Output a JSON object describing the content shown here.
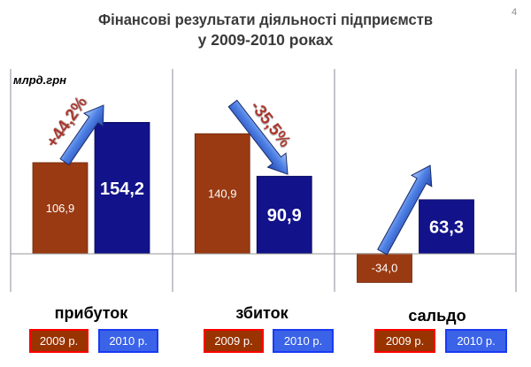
{
  "slide": {
    "page_number": "4",
    "title_line1": "Фінансові результати діяльності підприємств",
    "title_line2": "у 2009-2010 роках"
  },
  "colors": {
    "bar_2009": "#9A3A12",
    "bar_2010": "#12128A",
    "legend_2009_fill": "#993300",
    "legend_2009_border": "#FF0000",
    "legend_2010_fill": "#3B63E8",
    "legend_2010_border": "#1A3AF5",
    "change_label": "#A8372E",
    "arrow_outline": "#1B2C6B"
  },
  "chart_data": {
    "type": "bar",
    "ylabel": "млрд.грн",
    "categories": [
      "прибуток",
      "збиток",
      "сальдо"
    ],
    "series": [
      {
        "name": "2009 р.",
        "values": [
          106.9,
          140.9,
          -34.0
        ]
      },
      {
        "name": "2010 р.",
        "values": [
          154.2,
          90.9,
          63.3
        ]
      }
    ],
    "change_labels": [
      "+44,2%",
      "-35,5%",
      ""
    ],
    "ylim": [
      -45,
      217
    ],
    "grid": false,
    "legend": "below each category"
  }
}
